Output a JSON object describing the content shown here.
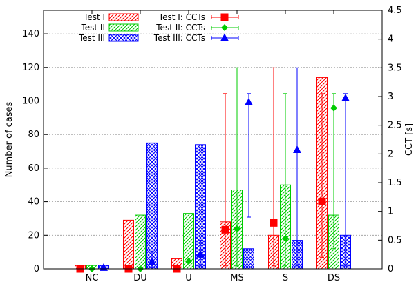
{
  "chart_data": {
    "type": "bar",
    "categories": [
      "NC",
      "DU",
      "U",
      "MS",
      "S",
      "DS"
    ],
    "ylabel": "Number of cases",
    "y2label": "CCT [s]",
    "ylim": [
      0,
      154
    ],
    "y2lim": [
      0,
      4.5
    ],
    "yticks": [
      "0",
      "20",
      "40",
      "60",
      "80",
      "100",
      "120",
      "140"
    ],
    "y2ticks": [
      "0",
      "0.5",
      "1",
      "1.5",
      "2",
      "2.5",
      "3",
      "3.5",
      "4",
      "4.5"
    ],
    "grid": "horizontal dashed",
    "legend_position": "top-left",
    "series": [
      {
        "name": "Test I",
        "color": "#ff0000",
        "pattern": "diagonal-hatch",
        "values": [
          2,
          29,
          6,
          28,
          20,
          114
        ]
      },
      {
        "name": "Test II",
        "color": "#00cc00",
        "pattern": "diagonal-hatch",
        "values": [
          2,
          32,
          33,
          47,
          50,
          32
        ]
      },
      {
        "name": "Test III",
        "color": "#0000ff",
        "pattern": "crosshatch",
        "values": [
          2,
          75,
          74,
          12,
          17,
          20
        ]
      }
    ],
    "cct_series": [
      {
        "name": "Test I: CCTs",
        "color": "#ff0000",
        "marker": "square",
        "points": [
          {
            "category": "NC",
            "value": 0.0,
            "low": null,
            "high": null
          },
          {
            "category": "DU",
            "value": 0.0,
            "low": null,
            "high": null
          },
          {
            "category": "U",
            "value": 0.0,
            "low": null,
            "high": null
          },
          {
            "category": "MS",
            "value": 0.68,
            "low": 0.05,
            "high": 3.05
          },
          {
            "category": "S",
            "value": 0.8,
            "low": 0.05,
            "high": 3.5
          },
          {
            "category": "DS",
            "value": 1.17,
            "low": 0.2,
            "high": 3.05
          }
        ]
      },
      {
        "name": "Test II: CCTs",
        "color": "#00cc00",
        "marker": "diamond",
        "points": [
          {
            "category": "NC",
            "value": 0.0,
            "low": null,
            "high": null
          },
          {
            "category": "DU",
            "value": 0.0,
            "low": null,
            "high": null
          },
          {
            "category": "U",
            "value": 0.13,
            "low": null,
            "high": null
          },
          {
            "category": "MS",
            "value": 0.7,
            "low": 0.05,
            "high": 3.5
          },
          {
            "category": "S",
            "value": 0.53,
            "low": 0.05,
            "high": 3.05
          },
          {
            "category": "DS",
            "value": 2.8,
            "low": 0.35,
            "high": 3.05
          }
        ]
      },
      {
        "name": "Test III: CCTs",
        "color": "#0000ff",
        "marker": "triangle",
        "points": [
          {
            "category": "NC",
            "value": 0.02,
            "low": null,
            "high": null
          },
          {
            "category": "DU",
            "value": 0.12,
            "low": 0.02,
            "high": 0.3
          },
          {
            "category": "U",
            "value": 0.25,
            "low": 0.05,
            "high": 0.5
          },
          {
            "category": "MS",
            "value": 2.9,
            "low": 0.9,
            "high": 3.05
          },
          {
            "category": "S",
            "value": 2.07,
            "low": 0.05,
            "high": 3.5
          },
          {
            "category": "DS",
            "value": 2.97,
            "low": 0.05,
            "high": 3.05
          }
        ]
      }
    ]
  }
}
